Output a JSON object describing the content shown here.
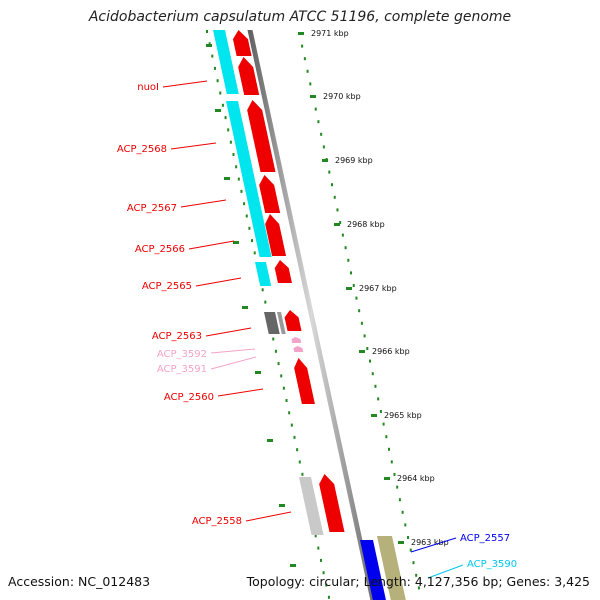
{
  "title": "Acidobacterium capsulatum ATCC 51196, complete genome",
  "footer": {
    "accession": "Accession: NC_012483",
    "summary": "Topology: circular; Length: 4,127,356 bp; Genes: 3,425"
  },
  "colors": {
    "forward_cds": "#ee0000",
    "reverse_cds": "#00e5ee",
    "rna": "#f4a3c8",
    "gray": "#666666",
    "light_gray": "#c9c9c9",
    "olive": "#b6b07a",
    "blue": "#0000ee",
    "tick_green": "#228822",
    "backbone": "#8f8f8f"
  },
  "ticks": [
    {
      "text": "2971 kbp"
    },
    {
      "text": "2970 kbp"
    },
    {
      "text": "2969 kbp"
    },
    {
      "text": "2968 kbp"
    },
    {
      "text": "2967 kbp"
    },
    {
      "text": "2966 kbp"
    },
    {
      "text": "2965 kbp"
    },
    {
      "text": "2964 kbp"
    },
    {
      "text": "2963 kbp"
    }
  ],
  "labels": [
    {
      "text": "nuoI",
      "color": "#ee0000"
    },
    {
      "text": "ACP_2568",
      "color": "#ee0000"
    },
    {
      "text": "ACP_2567",
      "color": "#ee0000"
    },
    {
      "text": "ACP_2566",
      "color": "#ee0000"
    },
    {
      "text": "ACP_2565",
      "color": "#ee0000"
    },
    {
      "text": "ACP_2563",
      "color": "#ee0000"
    },
    {
      "text": "ACP_3592",
      "color": "#f4a3c8"
    },
    {
      "text": "ACP_3591",
      "color": "#f4a3c8"
    },
    {
      "text": "ACP_2560",
      "color": "#ee0000"
    },
    {
      "text": "ACP_2558",
      "color": "#ee0000"
    },
    {
      "text": "ACP_2557",
      "color": "#0000ee"
    },
    {
      "text": "ACP_3590",
      "color": "#00c8ee"
    }
  ]
}
